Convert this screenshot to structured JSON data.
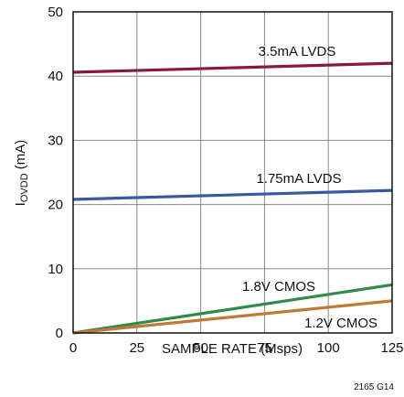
{
  "chart_data": {
    "type": "line",
    "xlabel": "SAMPLE RATE (Msps)",
    "ylabel_main": "I",
    "ylabel_sub": "OVDD",
    "ylabel_unit": " (mA)",
    "xlim": [
      0,
      125
    ],
    "ylim": [
      0,
      50
    ],
    "x_ticks": [
      0,
      25,
      50,
      75,
      100,
      125
    ],
    "y_ticks": [
      0,
      10,
      20,
      30,
      40,
      50
    ],
    "grid": true,
    "series": [
      {
        "name": "3.5mA LVDS",
        "color": "#8b1a3a",
        "x": [
          0,
          125
        ],
        "y": [
          40.6,
          42.0
        ]
      },
      {
        "name": "1.75mA LVDS",
        "color": "#3a58a6",
        "x": [
          0,
          125
        ],
        "y": [
          20.8,
          22.2
        ]
      },
      {
        "name": "1.8V CMOS",
        "color": "#2e8b4a",
        "x": [
          0,
          125
        ],
        "y": [
          0,
          7.5
        ]
      },
      {
        "name": "1.2V CMOS",
        "color": "#c07a35",
        "x": [
          0,
          125
        ],
        "y": [
          0,
          5.0
        ]
      }
    ]
  },
  "figure_id": "2165 G14"
}
